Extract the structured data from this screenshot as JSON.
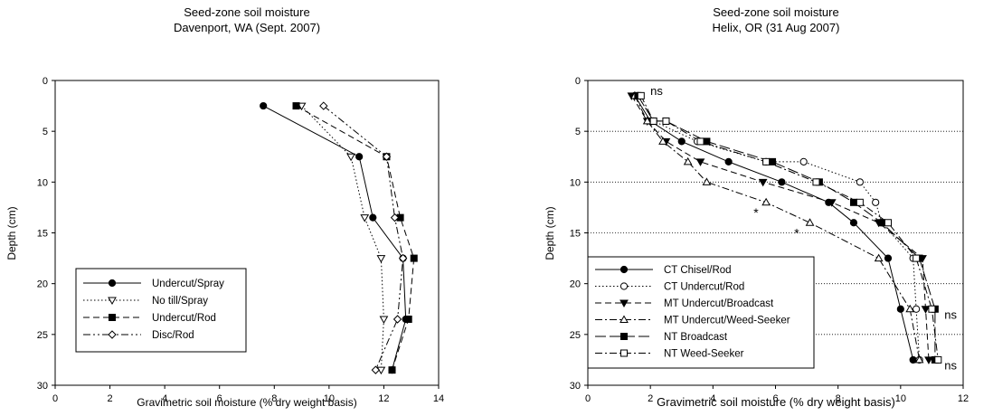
{
  "chart_data": [
    {
      "type": "line",
      "title": "Seed-zone soil moisture",
      "subtitle": "Davenport, WA  (Sept. 2007)",
      "xlabel": "Gravimetric soil moisture (% dry weight basis)",
      "ylabel": "Depth (cm)",
      "xlim": [
        0,
        14
      ],
      "ylim": [
        30,
        0
      ],
      "xticks": [
        "0",
        "2",
        "4",
        "6",
        "8",
        "10",
        "12",
        "14"
      ],
      "yticks": [
        "0",
        "5",
        "10",
        "15",
        "20",
        "25",
        "30"
      ],
      "grid": false,
      "legend_position": "bottom-left",
      "series": [
        {
          "name": "Undercut/Spray",
          "style": "solid",
          "marker": "circle-filled",
          "points": [
            [
              7.6,
              2.5
            ],
            [
              11.1,
              7.5
            ],
            [
              11.6,
              13.5
            ],
            [
              12.7,
              17.5
            ],
            [
              12.8,
              23.5
            ],
            [
              12.3,
              28.5
            ]
          ]
        },
        {
          "name": "No till/Spray",
          "style": "dotted",
          "marker": "triangle-down-open",
          "points": [
            [
              9.0,
              2.5
            ],
            [
              10.8,
              7.5
            ],
            [
              11.3,
              13.5
            ],
            [
              11.9,
              17.5
            ],
            [
              12.0,
              23.5
            ],
            [
              11.9,
              28.5
            ]
          ]
        },
        {
          "name": "Undercut/Rod",
          "style": "dashed",
          "marker": "square-filled",
          "points": [
            [
              8.8,
              2.5
            ],
            [
              12.1,
              7.5
            ],
            [
              12.6,
              13.5
            ],
            [
              13.1,
              17.5
            ],
            [
              12.9,
              23.5
            ],
            [
              12.3,
              28.5
            ]
          ]
        },
        {
          "name": "Disc/Rod",
          "style": "dashdotdot",
          "marker": "diamond-open",
          "points": [
            [
              9.8,
              2.5
            ],
            [
              12.1,
              7.5
            ],
            [
              12.4,
              13.5
            ],
            [
              12.7,
              17.5
            ],
            [
              12.5,
              23.5
            ],
            [
              11.7,
              28.5
            ]
          ]
        }
      ]
    },
    {
      "type": "line",
      "title": "Seed-zone soil moisture",
      "subtitle": "Helix, OR   (31 Aug 2007)",
      "xlabel": "Gravimetric soil moisture (% dry weight basis)",
      "ylabel": "Depth (cm)",
      "xlim": [
        0,
        12
      ],
      "ylim": [
        30,
        0
      ],
      "xticks": [
        "0",
        "2",
        "4",
        "6",
        "8",
        "10",
        "12"
      ],
      "yticks": [
        "0",
        "5",
        "10",
        "15",
        "20",
        "25",
        "30"
      ],
      "grid": true,
      "legend_position": "bottom-left",
      "annotations": [
        {
          "text": "ns",
          "x": 2.0,
          "y": 1.0
        },
        {
          "text": "*",
          "x": 5.3,
          "y": 13.0
        },
        {
          "text": "*",
          "x": 6.6,
          "y": 15.0
        },
        {
          "text": "ns",
          "x": 11.4,
          "y": 23.0
        },
        {
          "text": "ns",
          "x": 11.4,
          "y": 28.0
        }
      ],
      "series": [
        {
          "name": "CT Chisel/Rod",
          "style": "solid",
          "marker": "circle-filled",
          "points": [
            [
              1.5,
              1.5
            ],
            [
              2.0,
              4.0
            ],
            [
              3.0,
              6.0
            ],
            [
              4.5,
              8.0
            ],
            [
              6.2,
              10.0
            ],
            [
              7.7,
              12.0
            ],
            [
              8.5,
              14.0
            ],
            [
              9.6,
              17.5
            ],
            [
              10.0,
              22.5
            ],
            [
              10.4,
              27.5
            ]
          ]
        },
        {
          "name": "CT Undercut/Rod",
          "style": "dotted",
          "marker": "circle-open",
          "points": [
            [
              1.6,
              1.5
            ],
            [
              2.1,
              4.0
            ],
            [
              3.5,
              6.0
            ],
            [
              5.7,
              8.0
            ],
            [
              6.9,
              8.0
            ],
            [
              8.7,
              10.0
            ],
            [
              9.2,
              12.0
            ],
            [
              9.4,
              14.0
            ],
            [
              10.4,
              17.5
            ],
            [
              10.5,
              22.5
            ],
            [
              10.6,
              27.5
            ]
          ]
        },
        {
          "name": "MT Undercut/Broadcast",
          "style": "dashed",
          "marker": "triangle-down-filled",
          "points": [
            [
              1.4,
              1.5
            ],
            [
              1.9,
              4.0
            ],
            [
              2.5,
              6.0
            ],
            [
              3.6,
              8.0
            ],
            [
              5.6,
              10.0
            ],
            [
              7.8,
              12.0
            ],
            [
              9.3,
              14.0
            ],
            [
              10.7,
              17.5
            ],
            [
              10.8,
              22.5
            ],
            [
              10.9,
              27.5
            ]
          ]
        },
        {
          "name": "MT Undercut/Weed-Seeker",
          "style": "dashdot",
          "marker": "triangle-up-open",
          "points": [
            [
              1.5,
              1.5
            ],
            [
              1.9,
              4.0
            ],
            [
              2.4,
              6.0
            ],
            [
              3.2,
              8.0
            ],
            [
              3.8,
              10.0
            ],
            [
              5.7,
              12.0
            ],
            [
              7.1,
              14.0
            ],
            [
              9.3,
              17.5
            ],
            [
              10.3,
              22.5
            ],
            [
              10.6,
              27.5
            ]
          ]
        },
        {
          "name": "NT Broadcast",
          "style": "longdash",
          "marker": "square-filled",
          "points": [
            [
              1.6,
              1.5
            ],
            [
              2.1,
              4.0
            ],
            [
              2.5,
              4.0
            ],
            [
              3.8,
              6.0
            ],
            [
              5.9,
              8.0
            ],
            [
              7.4,
              10.0
            ],
            [
              8.5,
              12.0
            ],
            [
              9.4,
              14.0
            ],
            [
              10.6,
              17.5
            ],
            [
              11.1,
              22.5
            ],
            [
              11.1,
              27.5
            ]
          ]
        },
        {
          "name": "NT Weed-Seeker",
          "style": "dashdot",
          "marker": "square-open",
          "points": [
            [
              1.7,
              1.5
            ],
            [
              2.1,
              4.0
            ],
            [
              2.5,
              4.0
            ],
            [
              3.6,
              6.0
            ],
            [
              5.7,
              8.0
            ],
            [
              7.3,
              10.0
            ],
            [
              8.7,
              12.0
            ],
            [
              9.6,
              14.0
            ],
            [
              10.5,
              17.5
            ],
            [
              11.0,
              22.5
            ],
            [
              11.2,
              27.5
            ]
          ]
        }
      ]
    }
  ]
}
